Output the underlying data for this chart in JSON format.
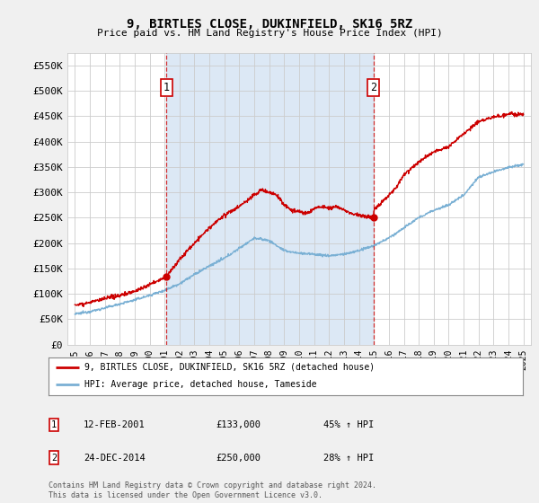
{
  "title": "9, BIRTLES CLOSE, DUKINFIELD, SK16 5RZ",
  "subtitle": "Price paid vs. HM Land Registry's House Price Index (HPI)",
  "fig_bg_color": "#f0f0f0",
  "plot_bg_color": "#ffffff",
  "highlight_bg_color": "#dce8f5",
  "ylim": [
    0,
    575000
  ],
  "yticks": [
    0,
    50000,
    100000,
    150000,
    200000,
    250000,
    300000,
    350000,
    400000,
    450000,
    500000,
    550000
  ],
  "sale1_x": 2001.12,
  "sale1_y": 133000,
  "sale1_label": "1",
  "sale1_date": "12-FEB-2001",
  "sale1_price": "£133,000",
  "sale1_hpi": "45% ↑ HPI",
  "sale2_x": 2014.98,
  "sale2_y": 250000,
  "sale2_label": "2",
  "sale2_date": "24-DEC-2014",
  "sale2_price": "£250,000",
  "sale2_hpi": "28% ↑ HPI",
  "legend_line1": "9, BIRTLES CLOSE, DUKINFIELD, SK16 5RZ (detached house)",
  "legend_line2": "HPI: Average price, detached house, Tameside",
  "footer": "Contains HM Land Registry data © Crown copyright and database right 2024.\nThis data is licensed under the Open Government Licence v3.0.",
  "red_color": "#cc0000",
  "blue_color": "#7ab0d4",
  "xmin": 1994.5,
  "xmax": 2025.5
}
